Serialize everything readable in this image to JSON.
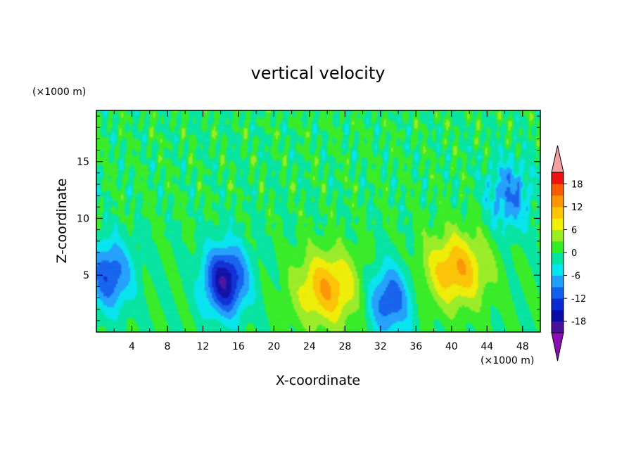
{
  "chart_data": {
    "type": "heatmap",
    "title": "vertical velocity",
    "xlabel": "X-coordinate",
    "ylabel": "Z-coordinate",
    "x_unit": "(×1000 m)",
    "y_unit": "(×1000 m)",
    "xlim": [
      0,
      50
    ],
    "ylim": [
      0,
      19.5
    ],
    "x_ticks": [
      "4",
      "8",
      "12",
      "16",
      "20",
      "24",
      "28",
      "32",
      "36",
      "40",
      "44",
      "48"
    ],
    "y_ticks": [
      "5",
      "10",
      "15"
    ],
    "colorbar": {
      "labels": [
        "18",
        "12",
        "6",
        "0",
        "-6",
        "-12",
        "-18"
      ],
      "levels_bottom_to_top": [
        -21,
        -18,
        -15,
        -12,
        -9,
        -6,
        -3,
        0,
        3,
        6,
        9,
        12,
        15,
        18,
        21
      ],
      "colors_bottom_to_top": [
        "#8a0fb2",
        "#4b0fa0",
        "#0a0aa8",
        "#0a2ad8",
        "#1060f0",
        "#1ea0ff",
        "#00e6f0",
        "#00e6a0",
        "#33ee22",
        "#99ee22",
        "#f0f000",
        "#ffc400",
        "#ff9400",
        "#ff5a00",
        "#f01010",
        "#f3a0a0"
      ]
    },
    "features": [
      {
        "kind": "updraft",
        "x": 26,
        "z": 3.8,
        "peak": 12
      },
      {
        "kind": "updraft",
        "x": 40.5,
        "z": 5.5,
        "peak": 12
      },
      {
        "kind": "downdraft",
        "x": 14.5,
        "z": 4.5,
        "peak": -18
      },
      {
        "kind": "downdraft",
        "x": 33,
        "z": 2.8,
        "peak": -12
      },
      {
        "kind": "downdraft",
        "x": 1.5,
        "z": 5,
        "peak": -12
      },
      {
        "kind": "downdraft",
        "x": 46.5,
        "z": 12,
        "peak": -9
      }
    ]
  }
}
